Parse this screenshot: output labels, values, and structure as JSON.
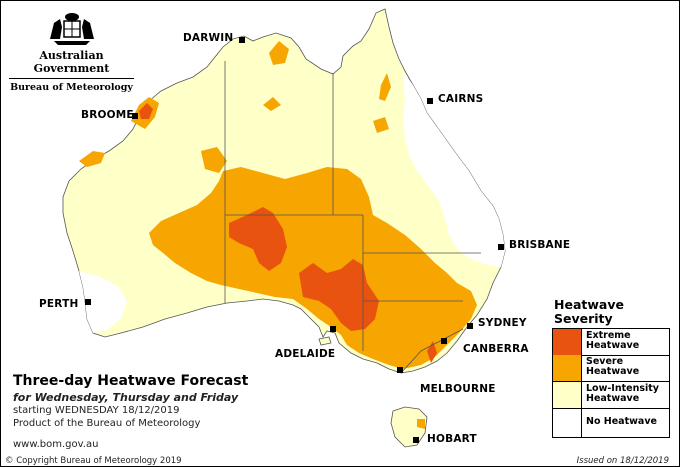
{
  "header": {
    "gov_name": "Australian Government",
    "agency": "Bureau of Meteorology",
    "crest_icon": "coat-of-arms-icon"
  },
  "map": {
    "title": "Three-day Heatwave Forecast",
    "subtitle": "for Wednesday, Thursday and Friday",
    "starting": "starting WEDNESDAY 18/12/2019",
    "product": "Product of the Bureau of Meteorology",
    "website": "www.bom.gov.au",
    "copyright": "© Copyright Bureau of Meteorology 2019",
    "issued": "Issued on 18/12/2019"
  },
  "cities": {
    "darwin": "DARWIN",
    "broome": "BROOME",
    "cairns": "CAIRNS",
    "brisbane": "BRISBANE",
    "perth": "PERTH",
    "sydney": "SYDNEY",
    "canberra": "CANBERRA",
    "adelaide": "ADELAIDE",
    "melbourne": "MELBOURNE",
    "hobart": "HOBART"
  },
  "legend": {
    "title_line1": "Heatwave",
    "title_line2": "Severity",
    "items": [
      {
        "label1": "Extreme",
        "label2": "Heatwave",
        "color": "#e8530f"
      },
      {
        "label1": "Severe",
        "label2": "Heatwave",
        "color": "#f7a500"
      },
      {
        "label1": "Low-Intensity",
        "label2": "Heatwave",
        "color": "#ffffc8"
      },
      {
        "label1": "No Heatwave",
        "label2": "",
        "color": "#ffffff"
      }
    ]
  },
  "colors": {
    "extreme": "#e8530f",
    "severe": "#f7a500",
    "low": "#ffffc8",
    "none": "#ffffff",
    "border": "#555555"
  }
}
